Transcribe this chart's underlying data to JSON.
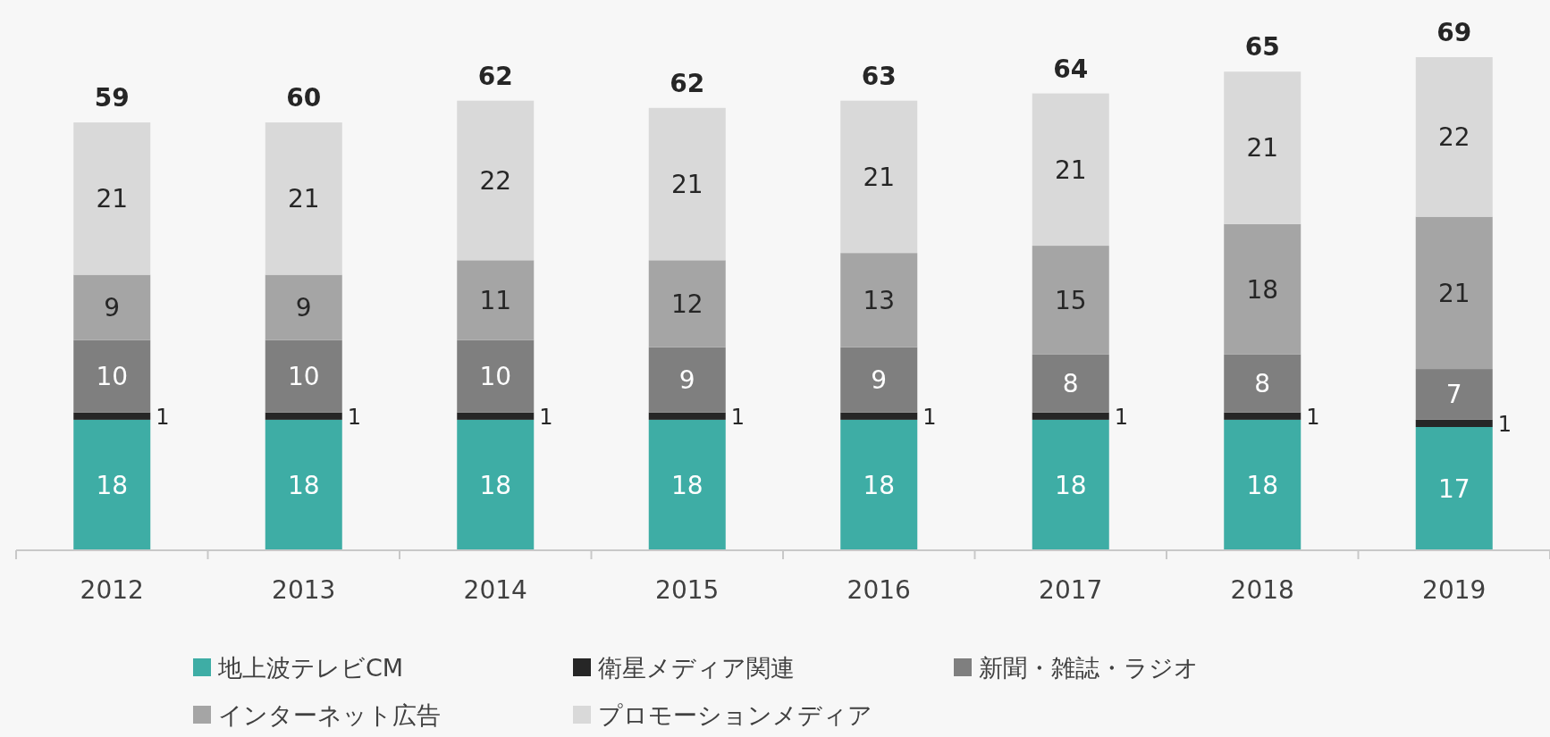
{
  "chart_data": {
    "type": "bar",
    "stacked": true,
    "categories": [
      "2012",
      "2013",
      "2014",
      "2015",
      "2016",
      "2017",
      "2018",
      "2019"
    ],
    "series": [
      {
        "name": "地上波テレビCM",
        "color": "#3eada5",
        "values": [
          18,
          18,
          18,
          18,
          18,
          18,
          18,
          17
        ]
      },
      {
        "name": "衛星メディア関連",
        "color": "#262626",
        "values": [
          1,
          1,
          1,
          1,
          1,
          1,
          1,
          1
        ]
      },
      {
        "name": "新聞・雑誌・ラジオ",
        "color": "#7f7f7f",
        "values": [
          10,
          10,
          10,
          9,
          9,
          8,
          8,
          7
        ]
      },
      {
        "name": "インターネット広告",
        "color": "#a5a5a5",
        "values": [
          9,
          9,
          11,
          12,
          13,
          15,
          18,
          21
        ]
      },
      {
        "name": "プロモーションメディア",
        "color": "#d9d9d9",
        "values": [
          21,
          21,
          22,
          21,
          21,
          21,
          21,
          22
        ]
      }
    ],
    "data_labels": true,
    "totals": [
      "59",
      "60",
      "62",
      "62",
      "63",
      "64",
      "65",
      "69"
    ],
    "legend": "bottom"
  }
}
